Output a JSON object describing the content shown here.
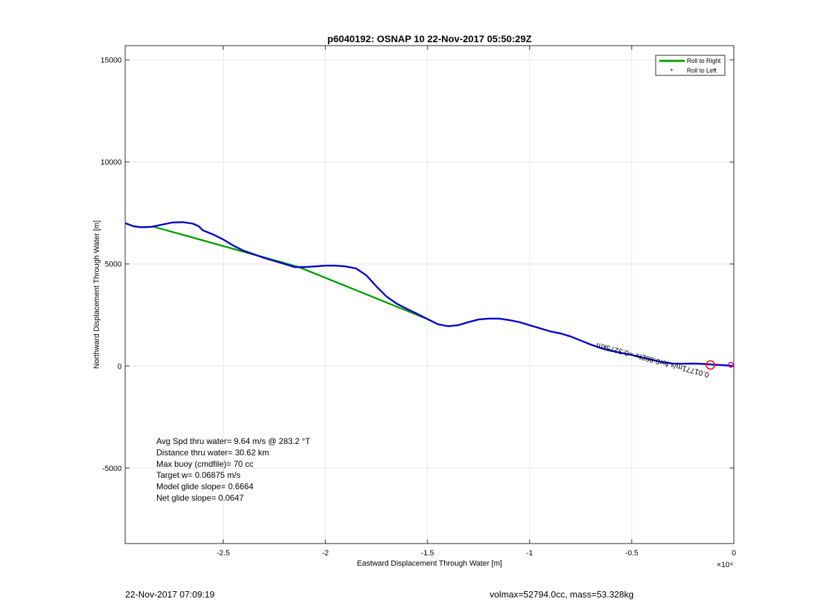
{
  "footer": {
    "left_text": "22-Nov-2017 07:09:19",
    "right_text": "volmax=52794.0cc, mass=53.328kg"
  },
  "chart_data": {
    "type": "line",
    "title": "p6040192: OSNAP 10 22-Nov-2017 05:50:29Z",
    "xlabel": "Eastward Displacement Through Water [m]",
    "ylabel": "Northward Displacement Through Water [m]",
    "x_exponent_label": "×10⁴",
    "xlim": [
      -2.98,
      0
    ],
    "ylim": [
      -8700,
      15700
    ],
    "x_ticks": [
      -2.5,
      -2,
      -1.5,
      -1,
      -0.5,
      0
    ],
    "x_tick_labels": [
      "-2.5",
      "-2",
      "-1.5",
      "-1",
      "-0.5",
      "0"
    ],
    "y_ticks": [
      -5000,
      0,
      5000,
      10000,
      15000
    ],
    "y_tick_labels": [
      "-5000",
      "0",
      "5000",
      "10000",
      "15000"
    ],
    "grid": true,
    "legend_position": "top-right",
    "legend": [
      {
        "name": "Roll to Right",
        "color": "#00a000",
        "marker": "line"
      },
      {
        "name": "Roll to Left",
        "color": "#ff0000",
        "marker": "dot"
      }
    ],
    "series": [
      {
        "name": "Roll to Right",
        "color": "#00a000",
        "points": [
          [
            -2.85,
            6850
          ],
          [
            -2.13,
            4850
          ],
          [
            -1.5,
            2300
          ]
        ]
      },
      {
        "name": "track",
        "color": "#0000cc",
        "points": [
          [
            -2.98,
            7000
          ],
          [
            -2.94,
            6850
          ],
          [
            -2.9,
            6800
          ],
          [
            -2.85,
            6820
          ],
          [
            -2.8,
            6930
          ],
          [
            -2.75,
            7030
          ],
          [
            -2.7,
            7050
          ],
          [
            -2.65,
            6980
          ],
          [
            -2.62,
            6850
          ],
          [
            -2.6,
            6650
          ],
          [
            -2.55,
            6450
          ],
          [
            -2.5,
            6200
          ],
          [
            -2.45,
            5900
          ],
          [
            -2.4,
            5650
          ],
          [
            -2.3,
            5300
          ],
          [
            -2.2,
            5000
          ],
          [
            -2.15,
            4850
          ],
          [
            -2.1,
            4850
          ],
          [
            -2.05,
            4880
          ],
          [
            -2.0,
            4920
          ],
          [
            -1.95,
            4920
          ],
          [
            -1.9,
            4880
          ],
          [
            -1.85,
            4780
          ],
          [
            -1.8,
            4450
          ],
          [
            -1.75,
            3900
          ],
          [
            -1.7,
            3400
          ],
          [
            -1.65,
            3050
          ],
          [
            -1.6,
            2800
          ],
          [
            -1.55,
            2550
          ],
          [
            -1.5,
            2300
          ],
          [
            -1.45,
            2050
          ],
          [
            -1.4,
            1950
          ],
          [
            -1.35,
            2000
          ],
          [
            -1.3,
            2150
          ],
          [
            -1.25,
            2280
          ],
          [
            -1.2,
            2320
          ],
          [
            -1.15,
            2320
          ],
          [
            -1.1,
            2250
          ],
          [
            -1.05,
            2150
          ],
          [
            -1.0,
            2000
          ],
          [
            -0.95,
            1850
          ],
          [
            -0.9,
            1700
          ],
          [
            -0.85,
            1600
          ],
          [
            -0.8,
            1450
          ],
          [
            -0.75,
            1250
          ],
          [
            -0.7,
            1050
          ],
          [
            -0.65,
            870
          ],
          [
            -0.6,
            750
          ],
          [
            -0.55,
            640
          ],
          [
            -0.5,
            540
          ],
          [
            -0.45,
            420
          ],
          [
            -0.4,
            300
          ],
          [
            -0.35,
            190
          ],
          [
            -0.3,
            120
          ],
          [
            -0.25,
            110
          ],
          [
            -0.2,
            120
          ],
          [
            -0.15,
            100
          ],
          [
            -0.1,
            70
          ],
          [
            -0.05,
            40
          ],
          [
            0,
            0
          ]
        ]
      }
    ],
    "markers": [
      {
        "x": -0.115,
        "y": 50,
        "shape": "circle",
        "color": "#ff0000"
      },
      {
        "x": -0.015,
        "y": 60,
        "shape": "circle",
        "color": "#cc0077"
      }
    ],
    "rotated_annotation": {
      "text": "0.01771m/s for0.882hr =0.3275km",
      "x": -0.67,
      "y": 1150,
      "angle_deg": 195
    },
    "stats_lines": [
      "Avg Spd thru water=  9.64 m/s @ 283.2 °T",
      "Distance thru water= 30.62 km",
      "Max buoy (cmdfile)= 70 cc",
      "Target w= 0.06875 m/s",
      "Model glide slope= 0.6664",
      "Net glide slope= 0.0647"
    ]
  }
}
